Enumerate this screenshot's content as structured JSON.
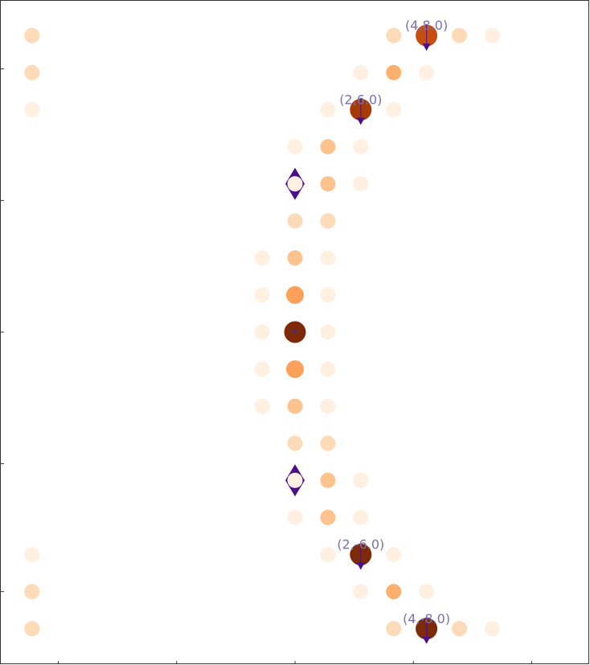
{
  "chart_data": {
    "type": "scatter",
    "title": "",
    "xlabel": "",
    "ylabel": "",
    "xlim": [
      -8.9,
      8.9
    ],
    "ylim": [
      -9.0,
      9.0
    ],
    "grid": false,
    "legend": "none",
    "colors": {
      "frame": "#333333",
      "marker": "#4b0f8a",
      "annotation": "#7a6fb0",
      "intensity_scale": [
        "#fff0e2",
        "#fddbb8",
        "#fdc38e",
        "#fda15a",
        "#f08030",
        "#c74e0e",
        "#a63b06",
        "#7d2a08"
      ]
    },
    "points": [
      {
        "x": -8.0,
        "y": 8.0,
        "v": 0.25
      },
      {
        "x": -8.0,
        "y": 7.0,
        "v": 0.2
      },
      {
        "x": -8.0,
        "y": 6.0,
        "v": 0.1
      },
      {
        "x": -8.0,
        "y": -6.0,
        "v": 0.1
      },
      {
        "x": -8.0,
        "y": -7.0,
        "v": 0.2
      },
      {
        "x": -8.0,
        "y": -8.0,
        "v": 0.25
      },
      {
        "x": 3.0,
        "y": 8.0,
        "v": 0.2
      },
      {
        "x": 4.0,
        "y": 8.0,
        "v": 0.85
      },
      {
        "x": 5.0,
        "y": 8.0,
        "v": 0.2
      },
      {
        "x": 6.0,
        "y": 8.0,
        "v": 0.1
      },
      {
        "x": 2.0,
        "y": 7.0,
        "v": 0.15
      },
      {
        "x": 3.0,
        "y": 7.0,
        "v": 0.4
      },
      {
        "x": 4.0,
        "y": 7.0,
        "v": 0.15
      },
      {
        "x": 1.0,
        "y": 6.0,
        "v": 0.15
      },
      {
        "x": 2.0,
        "y": 6.0,
        "v": 0.9
      },
      {
        "x": 3.0,
        "y": 6.0,
        "v": 0.15
      },
      {
        "x": 0.0,
        "y": 5.0,
        "v": 0.1
      },
      {
        "x": 1.0,
        "y": 5.0,
        "v": 0.3
      },
      {
        "x": 2.0,
        "y": 5.0,
        "v": 0.15
      },
      {
        "x": 0.0,
        "y": 4.0,
        "v": 0.08
      },
      {
        "x": 1.0,
        "y": 4.0,
        "v": 0.35
      },
      {
        "x": 2.0,
        "y": 4.0,
        "v": 0.1
      },
      {
        "x": 0.0,
        "y": 3.0,
        "v": 0.2
      },
      {
        "x": 1.0,
        "y": 3.0,
        "v": 0.2
      },
      {
        "x": -1.0,
        "y": 2.0,
        "v": 0.1
      },
      {
        "x": 0.0,
        "y": 2.0,
        "v": 0.3
      },
      {
        "x": 1.0,
        "y": 2.0,
        "v": 0.12
      },
      {
        "x": -1.0,
        "y": 1.0,
        "v": 0.1
      },
      {
        "x": 0.0,
        "y": 1.0,
        "v": 0.5
      },
      {
        "x": 1.0,
        "y": 1.0,
        "v": 0.1
      },
      {
        "x": -1.0,
        "y": 0.0,
        "v": 0.1
      },
      {
        "x": 0.0,
        "y": 0.0,
        "v": 1.0
      },
      {
        "x": 1.0,
        "y": 0.0,
        "v": 0.1
      },
      {
        "x": -1.0,
        "y": -1.0,
        "v": 0.1
      },
      {
        "x": 0.0,
        "y": -1.0,
        "v": 0.5
      },
      {
        "x": 1.0,
        "y": -1.0,
        "v": 0.1
      },
      {
        "x": -1.0,
        "y": -2.0,
        "v": 0.1
      },
      {
        "x": 0.0,
        "y": -2.0,
        "v": 0.3
      },
      {
        "x": 1.0,
        "y": -2.0,
        "v": 0.12
      },
      {
        "x": 0.0,
        "y": -3.0,
        "v": 0.2
      },
      {
        "x": 1.0,
        "y": -3.0,
        "v": 0.2
      },
      {
        "x": 0.0,
        "y": -4.0,
        "v": 0.08
      },
      {
        "x": 1.0,
        "y": -4.0,
        "v": 0.35
      },
      {
        "x": 2.0,
        "y": -4.0,
        "v": 0.1
      },
      {
        "x": 0.0,
        "y": -5.0,
        "v": 0.1
      },
      {
        "x": 1.0,
        "y": -5.0,
        "v": 0.3
      },
      {
        "x": 2.0,
        "y": -5.0,
        "v": 0.15
      },
      {
        "x": 1.0,
        "y": -6.0,
        "v": 0.15
      },
      {
        "x": 2.0,
        "y": -6.0,
        "v": 1.0
      },
      {
        "x": 3.0,
        "y": -6.0,
        "v": 0.15
      },
      {
        "x": 2.0,
        "y": -7.0,
        "v": 0.15
      },
      {
        "x": 3.0,
        "y": -7.0,
        "v": 0.4
      },
      {
        "x": 4.0,
        "y": -7.0,
        "v": 0.15
      },
      {
        "x": 3.0,
        "y": -8.0,
        "v": 0.2
      },
      {
        "x": 4.0,
        "y": -8.0,
        "v": 1.0
      },
      {
        "x": 5.0,
        "y": -8.0,
        "v": 0.2
      },
      {
        "x": 6.0,
        "y": -8.0,
        "v": 0.1
      }
    ],
    "markers": [
      {
        "x": 0.0,
        "y": 4.0,
        "shape": "diamond"
      },
      {
        "x": 0.0,
        "y": -4.0,
        "shape": "diamond"
      },
      {
        "x": 4.0,
        "y": 8.0,
        "shape": "pin"
      },
      {
        "x": 2.0,
        "y": 6.0,
        "shape": "pin"
      },
      {
        "x": 2.0,
        "y": -6.0,
        "shape": "pin"
      },
      {
        "x": 4.0,
        "y": -8.0,
        "shape": "pin"
      },
      {
        "x": 0.0,
        "y": 0.0,
        "shape": "plus"
      }
    ],
    "annotations": [
      {
        "text": "(4,8.0)",
        "x": 4.0,
        "y": 8.0
      },
      {
        "text": "(2,6.0)",
        "x": 2.0,
        "y": 6.0
      },
      {
        "text": "(2,-6.0)",
        "x": 2.0,
        "y": -6.0
      },
      {
        "text": "(4,-8.0)",
        "x": 4.0,
        "y": -8.0
      }
    ]
  }
}
